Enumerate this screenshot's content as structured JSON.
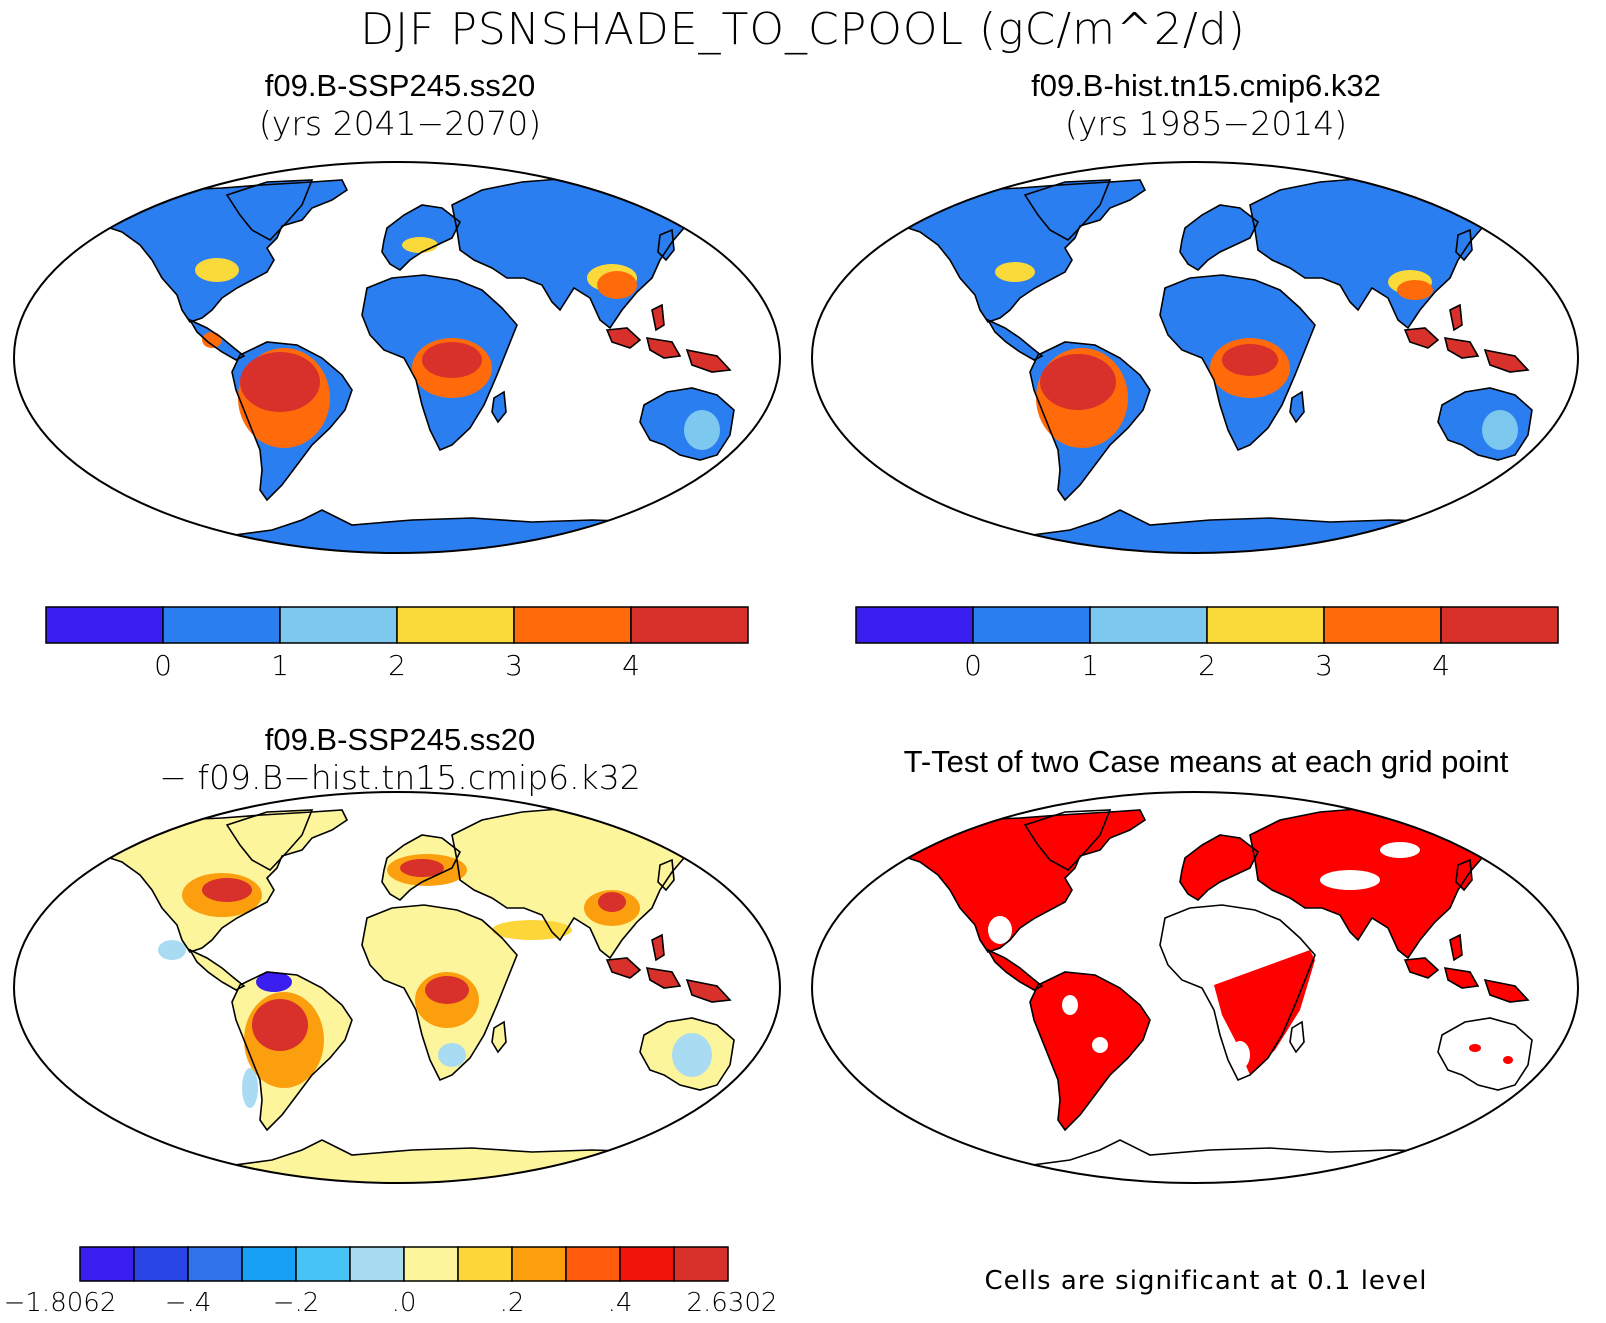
{
  "title": "DJF PSNSHADE_TO_CPOOL (gC/m^2/d)",
  "panels": [
    {
      "id": "p1",
      "title_line1": "f09.B-SSP245.ss20",
      "title_line2": "(yrs 2041−2070)"
    },
    {
      "id": "p2",
      "title_line1": "f09.B-hist.tn15.cmip6.k32",
      "title_line2": "(yrs 1985−2014)"
    },
    {
      "id": "p3",
      "title_line1": "f09.B-SSP245.ss20",
      "title_line2": "− f09.B−hist.tn15.cmip6.k32"
    },
    {
      "id": "p4",
      "title_line1": "T-Test of two Case means at each grid point",
      "title_line2": ""
    }
  ],
  "colorbar_top": {
    "colors": [
      "#3b1ff0",
      "#2b7ef0",
      "#7cc8ee",
      "#fad93a",
      "#ff6a0a",
      "#d8302a"
    ],
    "labels": [
      "0",
      "1",
      "2",
      "3",
      "4"
    ]
  },
  "colorbar_diff": {
    "colors": [
      "#3b1ff0",
      "#2a45e6",
      "#2f74e8",
      "#17a0f5",
      "#48c3f5",
      "#a9dcf2",
      "#fdf59b",
      "#fdd63a",
      "#fc9f0e",
      "#ff5c0e",
      "#f0140a",
      "#d8302a"
    ],
    "labels": [
      "−1.8062",
      "−.4",
      "−.2",
      ".0",
      ".2",
      ".4",
      "2.6302"
    ]
  },
  "footnote": "Cells are significant at 0.1 level",
  "map_colors": {
    "ocean": "#ffffff",
    "mean_land": "#2b7ef0",
    "mean_light": "#7cc8ee",
    "mean_yellow": "#fad93a",
    "mean_orange": "#ff6a0a",
    "mean_red": "#d8302a",
    "diff_land": "#fdf59b",
    "diff_yellow": "#fdd63a",
    "diff_orange": "#fc9f0e",
    "diff_red": "#d8302a",
    "diff_lightblue": "#a9dcf2",
    "diff_blue": "#3b1ff0",
    "ttest_sig": "#ff0000",
    "ttest_nonsig": "#ffffff"
  }
}
